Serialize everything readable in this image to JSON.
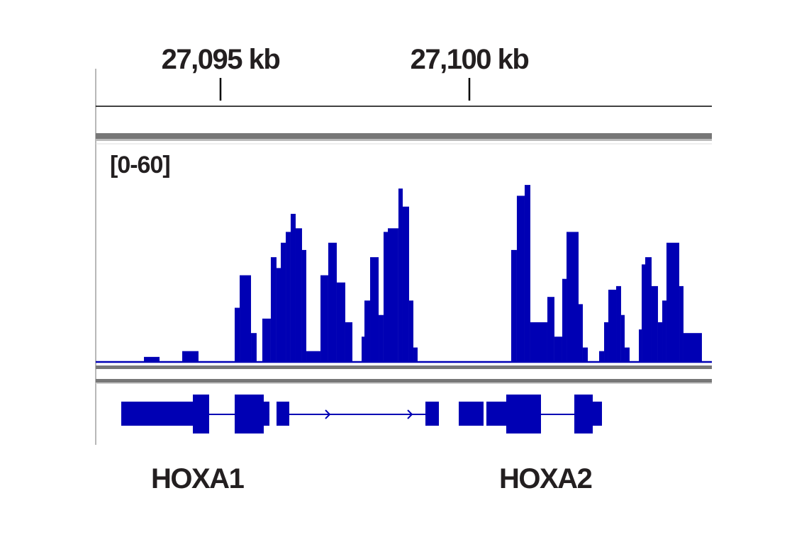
{
  "chart_data": {
    "type": "histogram",
    "xlim": [
      27092.493,
      27104.872
    ],
    "xticks": [
      {
        "value": 27095,
        "label": "27,095 kb"
      },
      {
        "value": 27100,
        "label": "27,100 kb"
      }
    ],
    "range_label": "[0-60]",
    "ylim": [
      0,
      60
    ],
    "color": "#0000b4",
    "bins": [
      27092.493,
      27093.462,
      27093.775,
      27094.231,
      27094.558,
      27095.285,
      27095.385,
      27095.613,
      27095.726,
      27095.84,
      27096.011,
      27096.125,
      27096.211,
      27096.311,
      27096.41,
      27096.51,
      27096.638,
      27096.724,
      27097.009,
      27097.165,
      27097.336,
      27097.507,
      27097.65,
      27097.835,
      27097.892,
      27098.006,
      27098.177,
      27098.276,
      27098.362,
      27098.575,
      27098.661,
      27098.789,
      27098.875,
      27098.96,
      27100.84,
      27100.954,
      27101.111,
      27101.225,
      27101.567,
      27101.709,
      27101.866,
      27101.952,
      27102.194,
      27102.279,
      27102.379,
      27102.607,
      27102.707,
      27102.792,
      27102.949,
      27103.048,
      27103.12,
      27103.219,
      27103.405,
      27103.462,
      27103.533,
      27103.661,
      27103.789,
      27103.875,
      27103.96,
      27104.217,
      27104.302,
      27104.672,
      27104.872
    ],
    "values": [
      0,
      1.4,
      0,
      3,
      0,
      15,
      24,
      8,
      0,
      12,
      29,
      26,
      33,
      36,
      41,
      37,
      31,
      3,
      24,
      33,
      22,
      11,
      0,
      7,
      17,
      29,
      13,
      36,
      37,
      48,
      43,
      17,
      4,
      0,
      31,
      46,
      49,
      11,
      18,
      7,
      23,
      36,
      16,
      4,
      0,
      3,
      11,
      20,
      21,
      13,
      4,
      0,
      9,
      27,
      29,
      21,
      11,
      17,
      33,
      21,
      8,
      0
    ],
    "genes": [
      "HOXA1",
      "HOXA2"
    ]
  }
}
